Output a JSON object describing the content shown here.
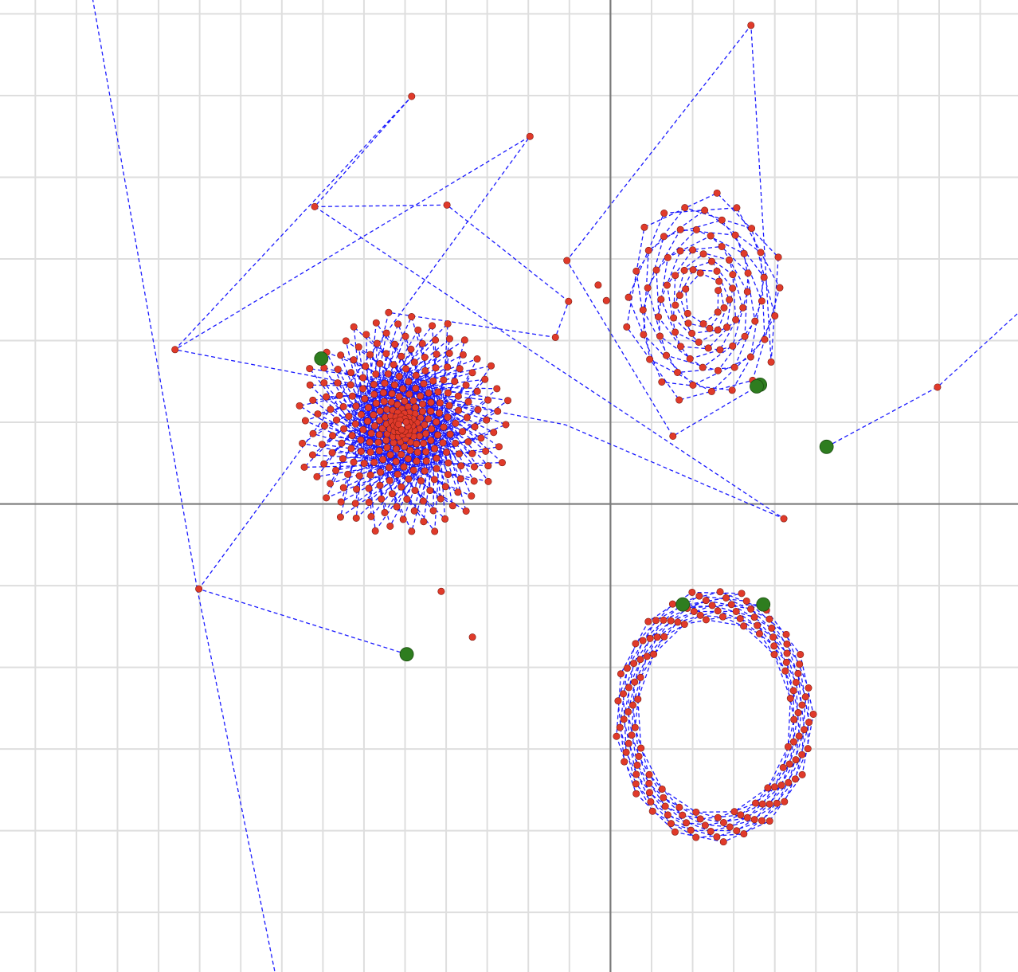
{
  "chart_data": {
    "type": "scatter",
    "title": "",
    "xlabel": "",
    "ylabel": "",
    "xlim": [
      -7.43,
      4.96
    ],
    "ylim": [
      -5.73,
      6.17
    ],
    "grid": true,
    "axes_shown": true,
    "tick_labels_shown": false,
    "colors": {
      "path": "#1a1aff",
      "point": "#e03a2a",
      "start_point": "#2e7d1f",
      "grid": "#dedede",
      "axis": "#7a7a7a"
    },
    "series": [
      {
        "kind": "spiral",
        "center": [
          -2.53,
          0.97
        ],
        "r0": 1.32,
        "r1": 0.05,
        "turns": 24,
        "steps": 300,
        "angle_step": 2.4,
        "start_angle": 1.7,
        "stretch_y": 1.05,
        "prefix": [
          [
            -2.48,
            -1.84
          ],
          [
            -5.01,
            -1.04
          ],
          [
            -0.98,
            4.5
          ],
          [
            -5.3,
            1.89
          ],
          [
            -2.42,
            4.99
          ],
          [
            -3.6,
            3.64
          ],
          [
            -1.99,
            3.66
          ],
          [
            -0.51,
            2.48
          ],
          [
            -0.67,
            2.04
          ]
        ],
        "start": [
          -2.48,
          -1.84
        ]
      },
      {
        "kind": "spiral",
        "center": [
          1.13,
          2.5
        ],
        "r0": 1.0,
        "r1": 0.2,
        "turns": 5,
        "steps": 90,
        "angle_step": 1.0,
        "start_angle": -0.6,
        "stretch_y": 1.35,
        "prefix": [
          [
            1.82,
            1.46
          ],
          [
            0.76,
            0.83
          ],
          [
            -0.53,
            2.98
          ],
          [
            1.71,
            5.86
          ]
        ],
        "start": [
          1.82,
          1.46
        ]
      },
      {
        "kind": "ring",
        "center": [
          1.27,
          -2.6
        ],
        "r0": 1.22,
        "r1": 0.93,
        "turns": 6,
        "steps": 140,
        "angle_step": 0.5,
        "start_angle": 1.3,
        "stretch_y": 1.28,
        "prefix": [
          [
            1.86,
            -1.23
          ],
          [
            0.91,
            -1.26
          ]
        ],
        "start": [
          1.86,
          -1.23
        ]
      }
    ],
    "extra_paths": [
      [
        [
          2.63,
          0.7
        ],
        [
          3.98,
          1.43
        ],
        [
          5.05,
          2.42
        ]
      ],
      [
        [
          -5.03,
          -1.04
        ],
        [
          -6.31,
          6.23
        ]
      ],
      [
        [
          -5.03,
          -1.04
        ],
        [
          -4.05,
          -5.9
        ]
      ],
      [
        [
          -3.6,
          3.64
        ],
        [
          2.11,
          -0.18
        ],
        [
          -0.55,
          0.97
        ],
        [
          -5.3,
          1.89
        ]
      ]
    ],
    "extra_points": [
      [
        3.98,
        1.43
      ],
      [
        2.11,
        -0.18
      ],
      [
        -0.05,
        2.49
      ],
      [
        -0.15,
        2.68
      ],
      [
        -2.06,
        -1.07
      ],
      [
        -1.68,
        -1.63
      ]
    ],
    "extra_start_points": [
      [
        2.63,
        0.7
      ],
      [
        1.78,
        1.44
      ],
      [
        -3.52,
        1.78
      ],
      [
        0.88,
        -1.23
      ]
    ]
  }
}
